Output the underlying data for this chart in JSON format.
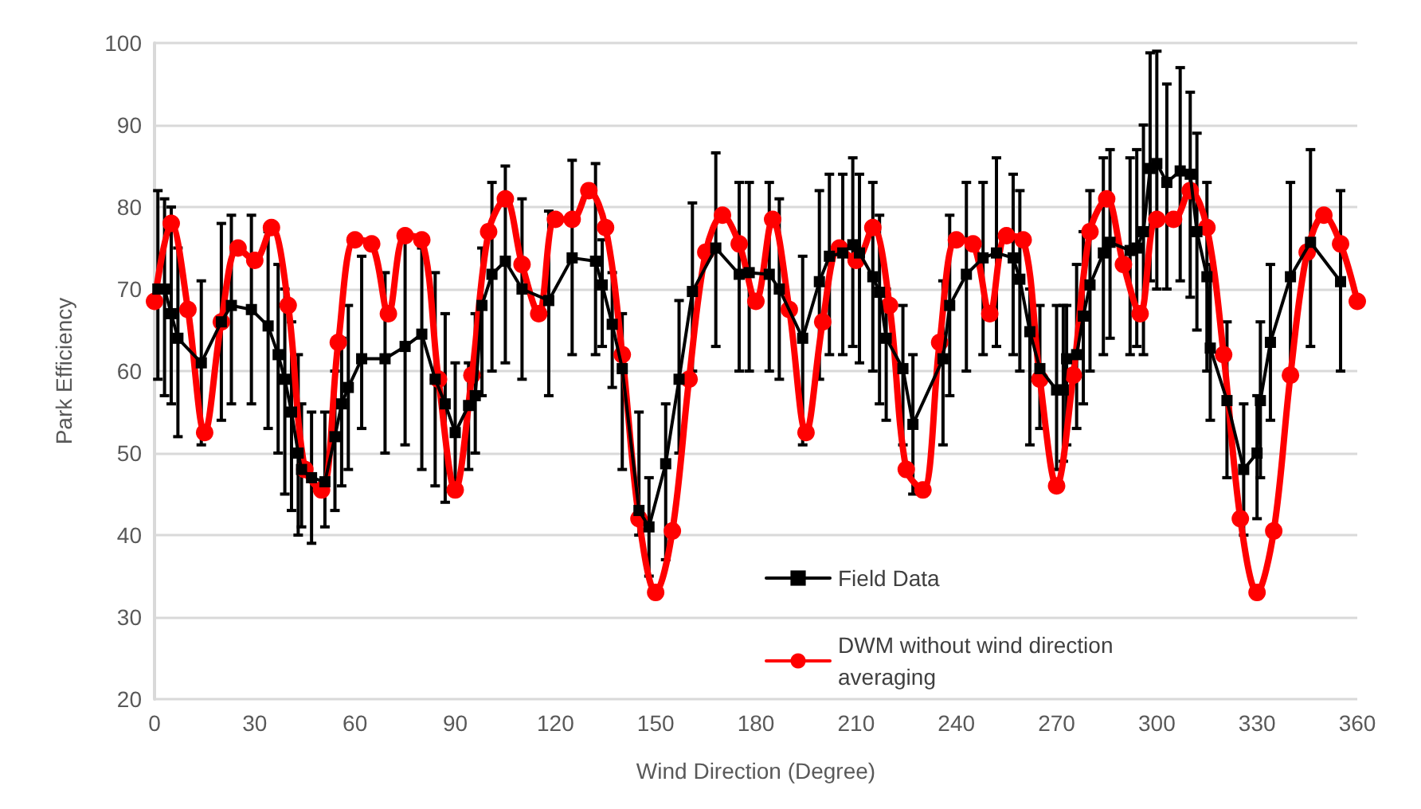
{
  "chart_data": {
    "type": "line",
    "xlabel": "Wind Direction (Degree)",
    "ylabel": "Park Efficiency",
    "xlim": [
      0,
      360
    ],
    "xticks": [
      0,
      30,
      60,
      90,
      120,
      150,
      180,
      210,
      240,
      270,
      300,
      330,
      360
    ],
    "ylim": [
      20,
      100
    ],
    "yticks": [
      20,
      30,
      40,
      50,
      60,
      70,
      80,
      90,
      100
    ],
    "grid": "y",
    "legend": "bottom",
    "line_style": "solid",
    "series": [
      {
        "name": "Field Data",
        "color": "#000000",
        "marker": "square",
        "x": [
          1,
          3,
          5,
          7,
          14,
          20,
          23,
          29,
          34,
          37,
          39,
          41,
          43,
          44,
          47,
          51,
          54,
          56,
          58,
          62,
          69,
          75,
          80,
          84,
          87,
          90,
          94,
          96,
          98,
          101,
          105,
          110,
          118,
          125,
          132,
          134,
          137,
          140,
          145,
          148,
          153,
          157,
          161,
          168,
          175,
          178,
          184,
          187,
          194,
          199,
          202,
          206,
          209,
          211,
          215,
          217,
          219,
          224,
          227,
          236,
          238,
          243,
          248,
          252,
          257,
          259,
          262,
          265,
          270,
          272,
          273,
          276,
          278,
          280,
          284,
          286,
          292,
          294,
          296,
          298,
          300,
          303,
          307,
          310,
          312,
          315,
          316,
          321,
          326,
          330,
          331,
          334,
          340,
          346,
          355
        ],
        "values": [
          70,
          70,
          67,
          64,
          61,
          66,
          68,
          67.5,
          65.5,
          62,
          59,
          55,
          50,
          48,
          47,
          46.5,
          52,
          56,
          58,
          61.5,
          61.5,
          63,
          64.5,
          59,
          56,
          52.5,
          55.8,
          57,
          68,
          71.8,
          73.4,
          70,
          68.6,
          73.8,
          73.4,
          70.5,
          65.7,
          60.3,
          43,
          41,
          48.7,
          59,
          69.7,
          75,
          71.8,
          72,
          71.8,
          70,
          64,
          70.9,
          74,
          74.4,
          75.4,
          74.4,
          71.5,
          69.6,
          64,
          60.3,
          53.5,
          61.5,
          68,
          71.8,
          73.8,
          74.4,
          73.8,
          71.2,
          64.8,
          60.3,
          57.7,
          57.7,
          61.5,
          62,
          66.7,
          70.5,
          74.4,
          75.7,
          74.7,
          75,
          77,
          84.7,
          85.3,
          83,
          84.4,
          84,
          77,
          71.5,
          62.8,
          56.4,
          48,
          50,
          56.4,
          63.5,
          71.5,
          75.7,
          70.9
        ],
        "errors": [
          [
            59,
            82
          ],
          [
            57,
            81
          ],
          [
            56,
            80
          ],
          [
            52,
            75
          ],
          [
            51,
            71
          ],
          [
            54,
            78
          ],
          [
            56,
            79
          ],
          [
            56,
            79
          ],
          [
            53,
            77
          ],
          [
            50,
            73
          ],
          [
            45,
            70
          ],
          [
            43,
            66
          ],
          [
            40,
            62
          ],
          [
            41,
            56
          ],
          [
            39,
            55
          ],
          [
            41,
            55
          ],
          [
            43,
            60
          ],
          [
            46,
            64
          ],
          [
            48,
            68
          ],
          [
            53,
            74
          ],
          [
            50,
            72
          ],
          [
            51,
            76
          ],
          [
            48,
            75
          ],
          [
            46,
            72
          ],
          [
            44,
            67
          ],
          [
            45,
            61
          ],
          [
            48,
            61
          ],
          [
            50,
            67
          ],
          [
            57,
            75
          ],
          [
            60,
            83
          ],
          [
            61,
            85
          ],
          [
            59,
            81
          ],
          [
            57,
            79.5
          ],
          [
            62,
            85.7
          ],
          [
            62,
            85.3
          ],
          [
            63,
            76
          ],
          [
            58,
            72
          ],
          [
            48,
            67
          ],
          [
            40,
            55
          ],
          [
            35,
            47
          ],
          [
            37,
            56
          ],
          [
            50,
            68.6
          ],
          [
            60,
            80.5
          ],
          [
            63,
            86.6
          ],
          [
            60,
            83
          ],
          [
            60,
            83
          ],
          [
            60,
            83
          ],
          [
            59,
            81
          ],
          [
            51,
            74
          ],
          [
            59,
            82
          ],
          [
            62,
            84
          ],
          [
            62,
            84
          ],
          [
            63,
            86
          ],
          [
            61,
            84
          ],
          [
            60,
            83
          ],
          [
            56,
            79
          ],
          [
            54,
            70
          ],
          [
            51,
            68
          ],
          [
            45,
            62
          ],
          [
            51,
            71
          ],
          [
            57,
            79
          ],
          [
            60,
            83
          ],
          [
            62,
            83
          ],
          [
            63,
            86
          ],
          [
            62,
            84
          ],
          [
            60,
            82
          ],
          [
            51,
            70
          ],
          [
            53,
            68
          ],
          [
            48,
            68
          ],
          [
            49,
            68
          ],
          [
            51,
            68
          ],
          [
            53,
            73
          ],
          [
            56,
            77
          ],
          [
            60,
            82
          ],
          [
            62,
            86
          ],
          [
            64,
            87
          ],
          [
            62,
            86
          ],
          [
            63,
            87
          ],
          [
            62,
            90
          ],
          [
            71,
            98.8
          ],
          [
            70,
            99
          ],
          [
            70,
            95
          ],
          [
            71,
            97
          ],
          [
            69,
            94
          ],
          [
            65,
            89
          ],
          [
            60,
            83
          ],
          [
            54,
            73
          ],
          [
            47,
            66
          ],
          [
            40,
            56
          ],
          [
            42,
            57
          ],
          [
            47,
            66
          ],
          [
            54,
            73
          ],
          [
            60,
            83
          ],
          [
            63,
            87
          ],
          [
            60,
            82
          ]
        ]
      },
      {
        "name": "DWM without wind direction averaging",
        "color": "#ff0000",
        "marker": "circle",
        "x": [
          0,
          5,
          10,
          15,
          20,
          25,
          30,
          35,
          40,
          45,
          50,
          55,
          60,
          65,
          70,
          75,
          80,
          85,
          90,
          95,
          100,
          105,
          110,
          115,
          120,
          125,
          130,
          135,
          140,
          145,
          150,
          155,
          160,
          165,
          170,
          175,
          180,
          185,
          190,
          195,
          200,
          205,
          210,
          215,
          220,
          225,
          230,
          235,
          240,
          245,
          250,
          255,
          260,
          265,
          270,
          275,
          280,
          285,
          290,
          295,
          300,
          305,
          310,
          315,
          320,
          325,
          330,
          335,
          340,
          345,
          350,
          355,
          360
        ],
        "values": [
          68.5,
          78,
          67.5,
          52.5,
          66,
          75,
          73.5,
          77.5,
          68,
          48,
          45.5,
          63.5,
          76,
          75.5,
          67,
          76.5,
          76,
          59,
          45.5,
          59.5,
          77,
          81,
          73,
          67,
          78.5,
          78.5,
          82,
          77.5,
          62,
          42,
          33,
          40.5,
          59,
          74.5,
          79,
          75.5,
          68.5,
          78.5,
          67.5,
          52.5,
          66,
          75,
          73.5,
          77.5,
          68,
          48,
          45.5,
          63.5,
          76,
          75.5,
          67,
          76.5,
          76,
          59,
          46,
          59.5,
          77,
          81,
          73,
          67,
          78.5,
          78.5,
          82,
          77.5,
          62,
          42,
          33,
          40.5,
          59.5,
          74.5,
          79,
          75.5,
          68.5
        ]
      }
    ]
  }
}
